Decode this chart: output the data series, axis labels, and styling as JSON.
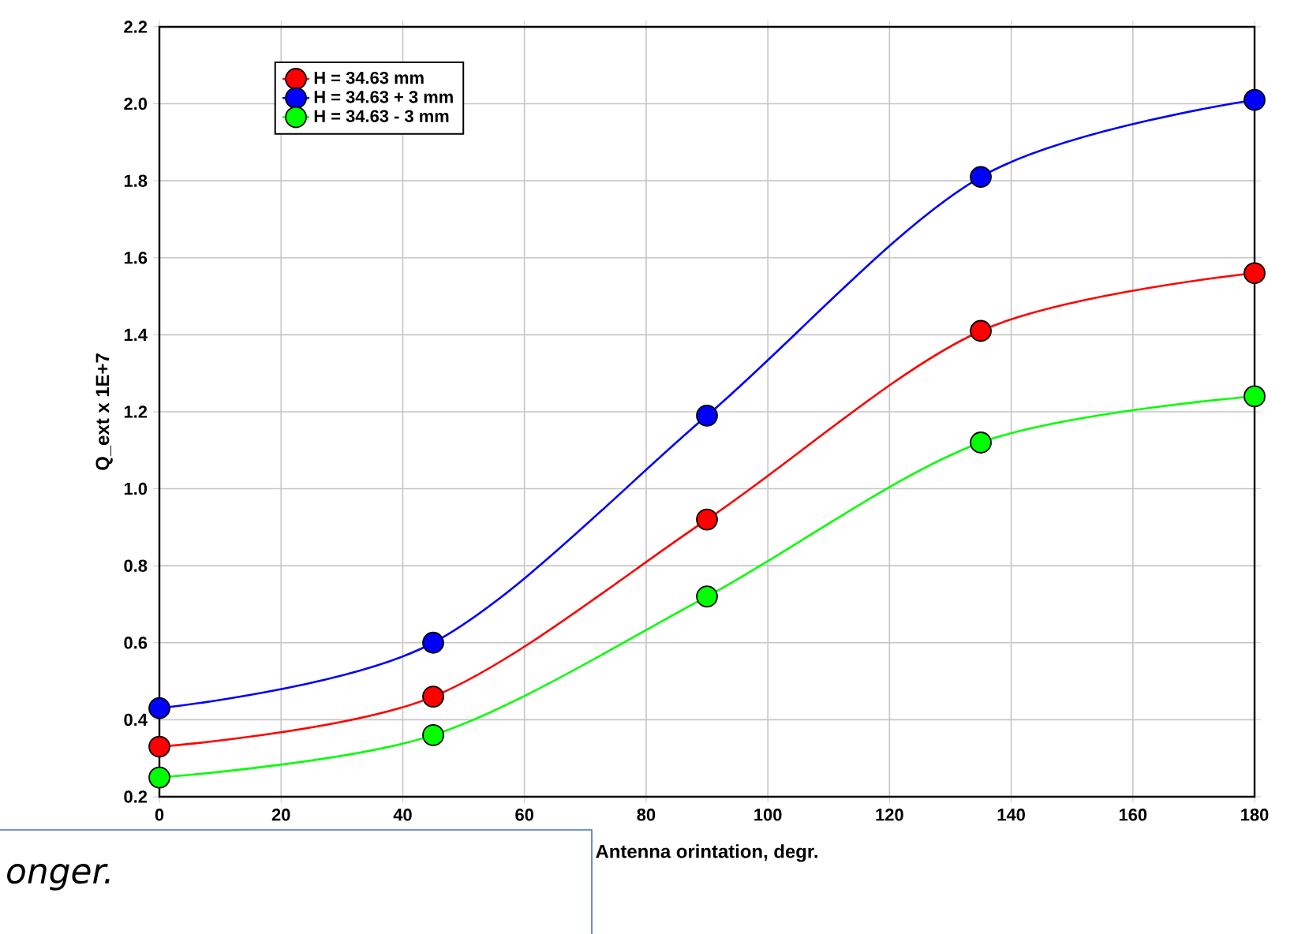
{
  "chart_data": {
    "type": "line",
    "xlabel": "Antenna orintation, degr.",
    "ylabel": "Q_ext x 1E+7",
    "x": [
      0,
      45,
      90,
      135,
      180
    ],
    "series": [
      {
        "name": "H = 34.63 mm",
        "color": "#ff0000",
        "values": [
          0.33,
          0.46,
          0.92,
          1.41,
          1.56
        ]
      },
      {
        "name": "H = 34.63 + 3 mm",
        "color": "#0000ff",
        "values": [
          0.43,
          0.6,
          1.19,
          1.81,
          2.01
        ]
      },
      {
        "name": "H = 34.63 - 3 mm",
        "color": "#00ff00",
        "values": [
          0.25,
          0.36,
          0.72,
          1.12,
          1.24
        ]
      }
    ],
    "xlim": [
      0,
      180
    ],
    "xticks": [
      0,
      20,
      40,
      60,
      80,
      100,
      120,
      140,
      160,
      180
    ],
    "ylim": [
      0.2,
      2.2
    ],
    "yticks": [
      {
        "value": 0.2,
        "label": "0.2"
      },
      {
        "value": 0.4,
        "label": "0.4"
      },
      {
        "value": 0.6,
        "label": "0.6"
      },
      {
        "value": 0.8,
        "label": "0.8"
      },
      {
        "value": 1.0,
        "label": "1.0"
      },
      {
        "value": 1.2,
        "label": "1.2"
      },
      {
        "value": 1.4,
        "label": "1.4"
      },
      {
        "value": 1.6,
        "label": "1.6"
      },
      {
        "value": 1.8,
        "label": "1.8"
      },
      {
        "value": 2.0,
        "label": "2.0"
      },
      {
        "value": 2.2,
        "label": "2.2"
      }
    ],
    "grid": true,
    "legend": "top left",
    "marker": "circle",
    "line_style": "solid",
    "annotations": [
      "onger."
    ]
  }
}
